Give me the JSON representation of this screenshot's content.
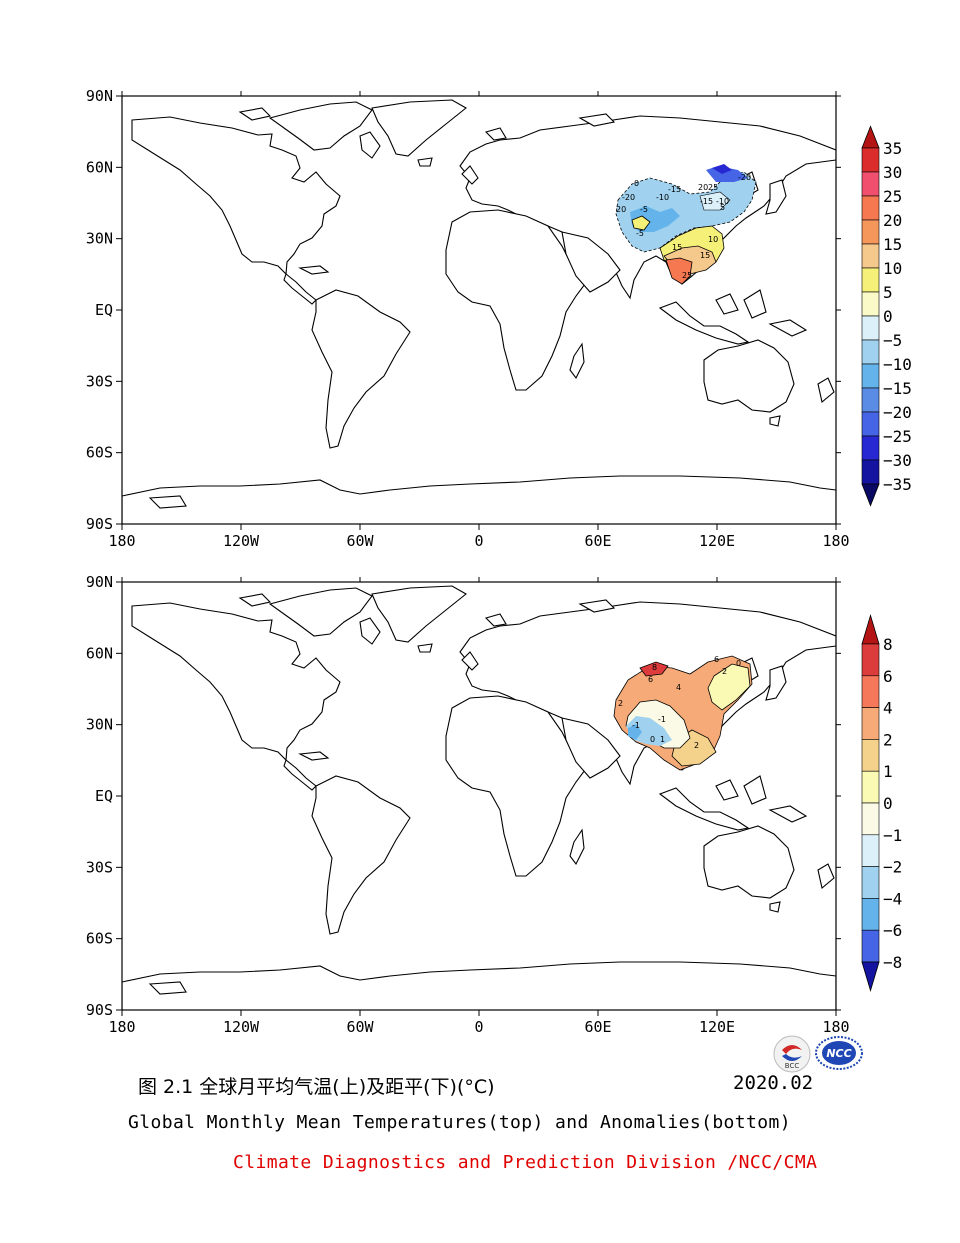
{
  "maps": [
    {
      "id": "top",
      "title": "Global Monthly Mean Temperatures",
      "lat_ticks": [
        "90N",
        "60N",
        "30N",
        "EQ",
        "30S",
        "60S",
        "90S"
      ],
      "lon_ticks": [
        "180",
        "120W",
        "60W",
        "0",
        "60E",
        "120E",
        "180"
      ],
      "colorbar": {
        "labels": [
          "35",
          "30",
          "25",
          "20",
          "15",
          "10",
          "5",
          "0",
          "−5",
          "−10",
          "−15",
          "−20",
          "−25",
          "−30",
          "−35"
        ],
        "colors": [
          "#b41414",
          "#dc2d2d",
          "#f0506e",
          "#f57850",
          "#f5965a",
          "#f5c88c",
          "#f5f078",
          "#fafac8",
          "#dcf0fa",
          "#a0d2f0",
          "#64b4eb",
          "#5a8ce6",
          "#4664e6",
          "#2828d2",
          "#1414a0",
          "#0a0a64"
        ]
      },
      "contour_labels": [
        "0",
        "-20",
        "20",
        "-15",
        "-10",
        "-5",
        "15",
        "10",
        "20",
        "25",
        "5",
        "-15",
        "-10",
        "-5",
        "-20",
        "25",
        "15"
      ]
    },
    {
      "id": "bottom",
      "title": "Anomalies",
      "lat_ticks": [
        "90N",
        "60N",
        "30N",
        "EQ",
        "30S",
        "60S",
        "90S"
      ],
      "lon_ticks": [
        "180",
        "120W",
        "60W",
        "0",
        "60E",
        "120E",
        "180"
      ],
      "colorbar": {
        "labels": [
          "8",
          "6",
          "4",
          "2",
          "1",
          "0",
          "−1",
          "−2",
          "−4",
          "−6",
          "−8"
        ],
        "colors": [
          "#b41414",
          "#dc3c3c",
          "#f5785a",
          "#f5aa78",
          "#f5d28c",
          "#fafab4",
          "#fafae6",
          "#dcf0fa",
          "#a0d2f0",
          "#64b4eb",
          "#4664e6",
          "#1414a0"
        ]
      },
      "contour_labels": [
        "8",
        "6",
        "4",
        "6",
        "2",
        "0",
        "2",
        "-1",
        "0",
        "1",
        "2",
        "-1"
      ]
    }
  ],
  "caption": {
    "chinese": "图 2.1  全球月平均气温(上)及距平(下)(°C)",
    "date": "2020.02",
    "english": "Global Monthly Mean Temperatures(top) and Anomalies(bottom)",
    "organization": "Climate Diagnostics and Prediction Division /NCC/CMA"
  },
  "logos": {
    "bcc": "BCC",
    "ncc": "NCC"
  },
  "colors": {
    "org_text": "#e00000",
    "ncc_logo": "#1e46b4",
    "bcc_logo_red": "#d22828"
  }
}
